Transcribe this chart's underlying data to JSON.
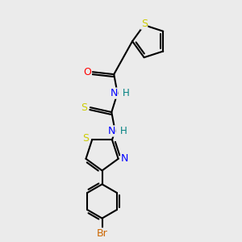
{
  "background_color": "#ebebeb",
  "bond_color": "#000000",
  "atom_colors": {
    "S": "#cccc00",
    "O": "#ff0000",
    "N": "#0000ff",
    "H": "#008080",
    "Br": "#cc6600",
    "C": "#000000"
  },
  "figsize": [
    3.0,
    3.0
  ],
  "dpi": 100
}
